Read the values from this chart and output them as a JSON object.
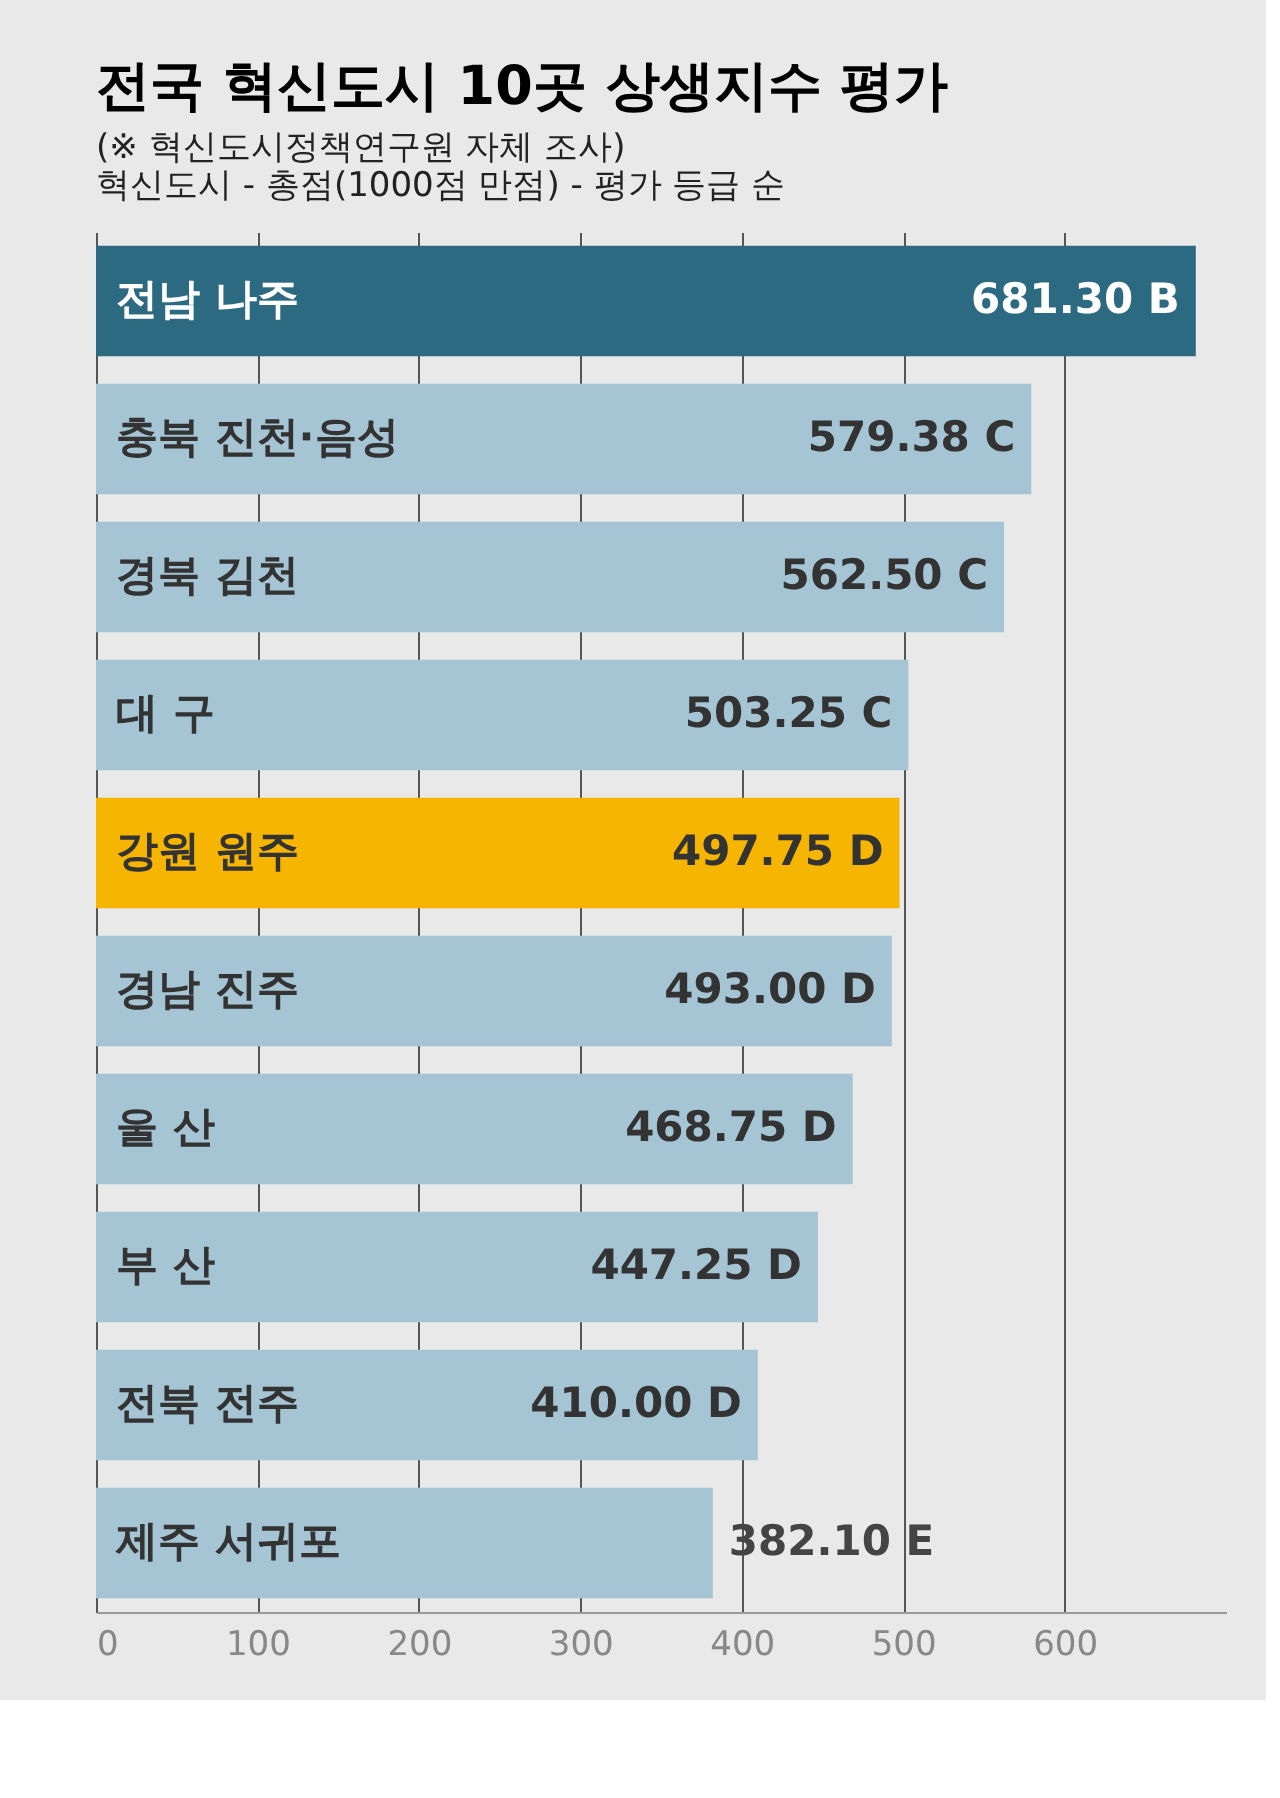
{
  "chart_data": {
    "type": "bar",
    "orientation": "horizontal",
    "title": "전국 혁신도시 10곳 상생지수 평가",
    "subtitle": "(※ 혁신도시정책연구원 자체 조사)",
    "annotations": [
      "혁신도시 - 총점(1000점 만점) - 평가 등급 순"
    ],
    "categories": [
      "전남 나주",
      "충북 진천·음성",
      "경북 김천",
      "대      구",
      "강원 원주",
      "경남 진주",
      "울      산",
      "부      산",
      "전북 전주",
      "제주 서귀포"
    ],
    "values": [
      681.3,
      579.38,
      562.5,
      503.25,
      497.75,
      493.0,
      468.75,
      447.25,
      410.0,
      382.1
    ],
    "value_labels": [
      "681.30 B",
      "579.38 C",
      "562.50 C",
      "503.25 C",
      "497.75 D",
      "493.00 D",
      "468.75 D",
      "447.25 D",
      "410.00 D",
      "382.10 E"
    ],
    "colors": [
      "#2c6a82",
      "#a5c5d4",
      "#a5c5d4",
      "#a5c5d4",
      "#f6b500",
      "#a5c5d4",
      "#a5c5d4",
      "#a5c5d4",
      "#a5c5d4",
      "#a5c5d4"
    ],
    "xlim": [
      0,
      700
    ],
    "xticks": [
      0,
      100,
      200,
      300,
      400,
      500,
      600
    ],
    "grid": "x",
    "tick_labels": "x"
  }
}
